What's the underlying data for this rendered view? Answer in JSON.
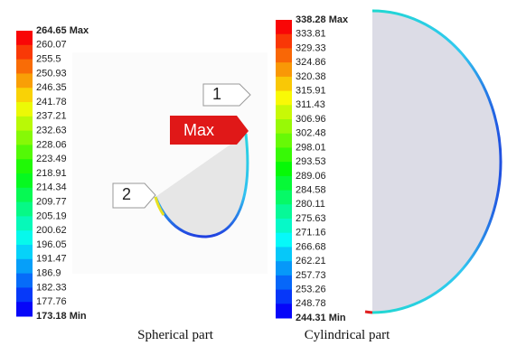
{
  "left_legend": {
    "labels": [
      "264.65 Max",
      "260.07",
      "255.5",
      "250.93",
      "246.35",
      "241.78",
      "237.21",
      "232.63",
      "228.06",
      "223.49",
      "218.91",
      "214.34",
      "209.77",
      "205.19",
      "200.62",
      "196.05",
      "191.47",
      "186.9",
      "182.33",
      "177.76",
      "173.18 Min"
    ]
  },
  "right_legend": {
    "labels": [
      "338.28 Max",
      "333.81",
      "329.33",
      "324.86",
      "320.38",
      "315.91",
      "311.43",
      "306.96",
      "302.48",
      "298.01",
      "293.53",
      "289.06",
      "284.58",
      "280.11",
      "275.63",
      "271.16",
      "266.68",
      "262.21",
      "257.73",
      "253.26",
      "248.78",
      "244.31 Min"
    ]
  },
  "callouts": {
    "one": "1",
    "two": "2",
    "max": "Max"
  },
  "captions": {
    "left": "Spherical part",
    "right": "Cylindrical part"
  }
}
